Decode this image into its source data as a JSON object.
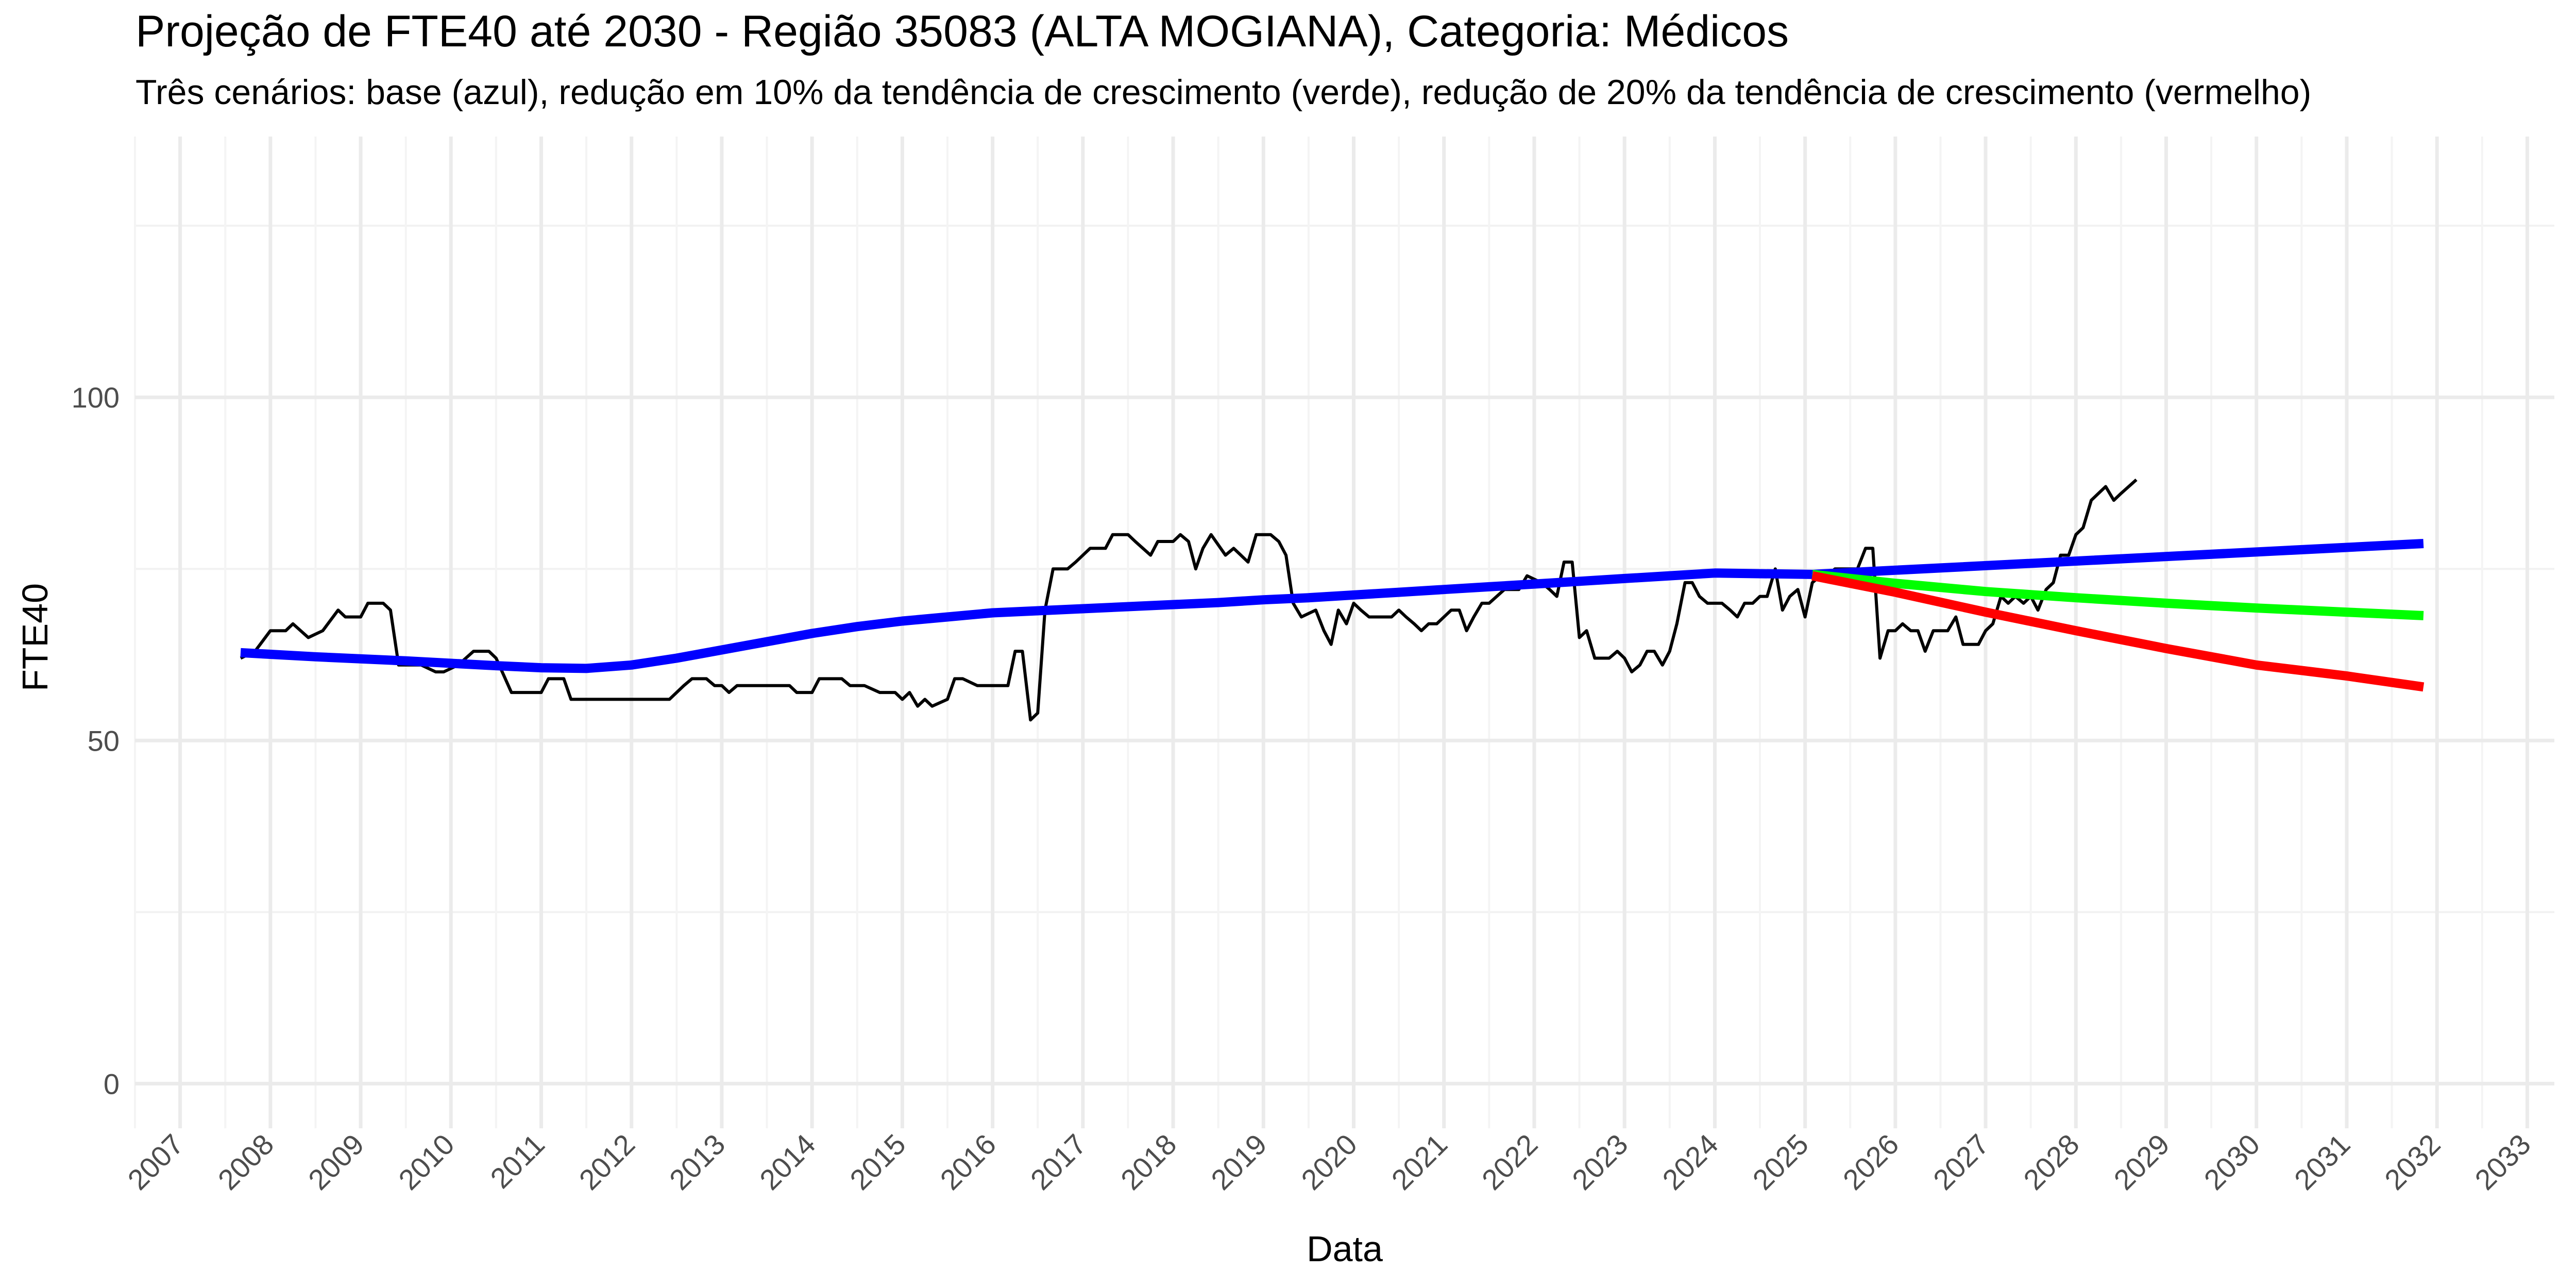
{
  "chart_data": {
    "type": "line",
    "title": "Projeção de FTE40 até 2030 - Região 35083 (ALTA MOGIANA), Categoria: Médicos",
    "subtitle": "Três cenários: base (azul), redução em 10% da tendência de crescimento (verde), redução de 20% da tendência de crescimento (vermelho)",
    "xlabel": "Data",
    "ylabel": "FTE40",
    "x_range": [
      2006.5,
      2033.3
    ],
    "ylim": [
      -6.5,
      138
    ],
    "y_ticks": [
      0,
      50,
      100
    ],
    "x_ticks": [
      "2007",
      "2008",
      "2009",
      "2010",
      "2011",
      "2012",
      "2013",
      "2014",
      "2015",
      "2016",
      "2017",
      "2018",
      "2019",
      "2020",
      "2021",
      "2022",
      "2023",
      "2024",
      "2025",
      "2026",
      "2027",
      "2028",
      "2029",
      "2030",
      "2031",
      "2032",
      "2033"
    ],
    "grid": true,
    "legend": "none",
    "series": [
      {
        "color": "#000000",
        "width": 6,
        "points": [
          [
            2007.67,
            62
          ],
          [
            2007.83,
            63
          ],
          [
            2008.0,
            66
          ],
          [
            2008.17,
            66
          ],
          [
            2008.25,
            67
          ],
          [
            2008.42,
            65
          ],
          [
            2008.58,
            66
          ],
          [
            2008.75,
            69
          ],
          [
            2008.83,
            68
          ],
          [
            2009.0,
            68
          ],
          [
            2009.08,
            70
          ],
          [
            2009.25,
            70
          ],
          [
            2009.33,
            69
          ],
          [
            2009.42,
            61
          ],
          [
            2009.67,
            61
          ],
          [
            2009.83,
            60
          ],
          [
            2009.92,
            60
          ],
          [
            2010.08,
            61
          ],
          [
            2010.25,
            63
          ],
          [
            2010.42,
            63
          ],
          [
            2010.5,
            62
          ],
          [
            2010.67,
            57
          ],
          [
            2011.0,
            57
          ],
          [
            2011.08,
            59
          ],
          [
            2011.25,
            59
          ],
          [
            2011.33,
            56
          ],
          [
            2012.42,
            56
          ],
          [
            2012.58,
            58
          ],
          [
            2012.67,
            59
          ],
          [
            2012.83,
            59
          ],
          [
            2012.92,
            58
          ],
          [
            2013.0,
            58
          ],
          [
            2013.08,
            57
          ],
          [
            2013.17,
            58
          ],
          [
            2013.75,
            58
          ],
          [
            2013.83,
            57
          ],
          [
            2014.0,
            57
          ],
          [
            2014.08,
            59
          ],
          [
            2014.33,
            59
          ],
          [
            2014.42,
            58
          ],
          [
            2014.58,
            58
          ],
          [
            2014.75,
            57
          ],
          [
            2014.92,
            57
          ],
          [
            2015.0,
            56
          ],
          [
            2015.08,
            57
          ],
          [
            2015.17,
            55
          ],
          [
            2015.25,
            56
          ],
          [
            2015.33,
            55
          ],
          [
            2015.5,
            56
          ],
          [
            2015.58,
            59
          ],
          [
            2015.67,
            59
          ],
          [
            2015.83,
            58
          ],
          [
            2016.17,
            58
          ],
          [
            2016.25,
            63
          ],
          [
            2016.33,
            63
          ],
          [
            2016.42,
            53
          ],
          [
            2016.5,
            54
          ],
          [
            2016.58,
            69
          ],
          [
            2016.67,
            75
          ],
          [
            2016.83,
            75
          ],
          [
            2016.92,
            76
          ],
          [
            2017.08,
            78
          ],
          [
            2017.25,
            78
          ],
          [
            2017.33,
            80
          ],
          [
            2017.5,
            80
          ],
          [
            2017.58,
            79
          ],
          [
            2017.75,
            77
          ],
          [
            2017.83,
            79
          ],
          [
            2018.0,
            79
          ],
          [
            2018.08,
            80
          ],
          [
            2018.17,
            79
          ],
          [
            2018.25,
            75
          ],
          [
            2018.33,
            78
          ],
          [
            2018.42,
            80
          ],
          [
            2018.58,
            77
          ],
          [
            2018.67,
            78
          ],
          [
            2018.75,
            77
          ],
          [
            2018.83,
            76
          ],
          [
            2018.92,
            80
          ],
          [
            2019.08,
            80
          ],
          [
            2019.17,
            79
          ],
          [
            2019.25,
            77
          ],
          [
            2019.33,
            70
          ],
          [
            2019.42,
            68
          ],
          [
            2019.58,
            69
          ],
          [
            2019.67,
            66
          ],
          [
            2019.75,
            64
          ],
          [
            2019.83,
            69
          ],
          [
            2019.92,
            67
          ],
          [
            2020.0,
            70
          ],
          [
            2020.08,
            69
          ],
          [
            2020.17,
            68
          ],
          [
            2020.42,
            68
          ],
          [
            2020.5,
            69
          ],
          [
            2020.58,
            68
          ],
          [
            2020.67,
            67
          ],
          [
            2020.75,
            66
          ],
          [
            2020.83,
            67
          ],
          [
            2020.92,
            67
          ],
          [
            2021.0,
            68
          ],
          [
            2021.08,
            69
          ],
          [
            2021.17,
            69
          ],
          [
            2021.25,
            66
          ],
          [
            2021.33,
            68
          ],
          [
            2021.42,
            70
          ],
          [
            2021.5,
            70
          ],
          [
            2021.67,
            72
          ],
          [
            2021.83,
            72
          ],
          [
            2021.92,
            74
          ],
          [
            2022.08,
            73
          ],
          [
            2022.17,
            72
          ],
          [
            2022.25,
            71
          ],
          [
            2022.33,
            76
          ],
          [
            2022.42,
            76
          ],
          [
            2022.5,
            65
          ],
          [
            2022.58,
            66
          ],
          [
            2022.67,
            62
          ],
          [
            2022.83,
            62
          ],
          [
            2022.92,
            63
          ],
          [
            2023.0,
            62
          ],
          [
            2023.08,
            60
          ],
          [
            2023.17,
            61
          ],
          [
            2023.25,
            63
          ],
          [
            2023.33,
            63
          ],
          [
            2023.42,
            61
          ],
          [
            2023.5,
            63
          ],
          [
            2023.58,
            67
          ],
          [
            2023.67,
            73
          ],
          [
            2023.75,
            73
          ],
          [
            2023.83,
            71
          ],
          [
            2023.92,
            70
          ],
          [
            2024.08,
            70
          ],
          [
            2024.17,
            69
          ],
          [
            2024.25,
            68
          ],
          [
            2024.33,
            70
          ],
          [
            2024.42,
            70
          ],
          [
            2024.5,
            71
          ],
          [
            2024.58,
            71
          ],
          [
            2024.67,
            75
          ],
          [
            2024.75,
            69
          ],
          [
            2024.83,
            71
          ],
          [
            2024.92,
            72
          ],
          [
            2025.0,
            68
          ],
          [
            2025.08,
            73
          ],
          [
            2025.17,
            74
          ],
          [
            2025.25,
            74
          ],
          [
            2025.33,
            75
          ],
          [
            2025.42,
            75
          ],
          [
            2025.58,
            75
          ],
          [
            2025.67,
            78
          ],
          [
            2025.75,
            78
          ],
          [
            2025.83,
            62
          ],
          [
            2025.92,
            66
          ],
          [
            2026.0,
            66
          ],
          [
            2026.08,
            67
          ],
          [
            2026.17,
            66
          ],
          [
            2026.25,
            66
          ],
          [
            2026.33,
            63
          ],
          [
            2026.42,
            66
          ],
          [
            2026.58,
            66
          ],
          [
            2026.67,
            68
          ],
          [
            2026.75,
            64
          ],
          [
            2026.92,
            64
          ],
          [
            2027.0,
            66
          ],
          [
            2027.08,
            67
          ],
          [
            2027.17,
            71
          ],
          [
            2027.25,
            70
          ],
          [
            2027.33,
            71
          ],
          [
            2027.42,
            70
          ],
          [
            2027.5,
            71
          ],
          [
            2027.58,
            69
          ],
          [
            2027.67,
            72
          ],
          [
            2027.75,
            73
          ],
          [
            2027.83,
            77
          ],
          [
            2027.92,
            77
          ],
          [
            2028.0,
            80
          ],
          [
            2028.08,
            81
          ],
          [
            2028.17,
            85
          ],
          [
            2028.25,
            86
          ],
          [
            2028.33,
            87
          ],
          [
            2028.42,
            85
          ],
          [
            2028.5,
            86
          ],
          [
            2028.67,
            88
          ]
        ]
      },
      {
        "color": "#0000ff",
        "width": 18,
        "points": [
          [
            2007.67,
            62.8
          ],
          [
            2008.5,
            62.2
          ],
          [
            2009.5,
            61.6
          ],
          [
            2010.5,
            60.9
          ],
          [
            2011.0,
            60.6
          ],
          [
            2011.5,
            60.5
          ],
          [
            2012.0,
            61.0
          ],
          [
            2012.5,
            62.0
          ],
          [
            2013.0,
            63.2
          ],
          [
            2013.5,
            64.4
          ],
          [
            2014.0,
            65.6
          ],
          [
            2014.5,
            66.6
          ],
          [
            2015.0,
            67.4
          ],
          [
            2015.5,
            68.0
          ],
          [
            2016.0,
            68.6
          ],
          [
            2016.5,
            68.9
          ],
          [
            2017.0,
            69.2
          ],
          [
            2017.5,
            69.5
          ],
          [
            2018.0,
            69.8
          ],
          [
            2018.5,
            70.1
          ],
          [
            2019.0,
            70.5
          ],
          [
            2019.5,
            70.8
          ],
          [
            2020.0,
            71.2
          ],
          [
            2020.5,
            71.6
          ],
          [
            2021.0,
            72.0
          ],
          [
            2021.5,
            72.4
          ],
          [
            2022.0,
            72.8
          ],
          [
            2022.5,
            73.2
          ],
          [
            2023.0,
            73.6
          ],
          [
            2023.5,
            74.0
          ],
          [
            2024.0,
            74.4
          ],
          [
            2025.08,
            74.2
          ],
          [
            2031.85,
            78.7
          ]
        ]
      },
      {
        "color": "#00ff00",
        "width": 18,
        "points": [
          [
            2025.08,
            74.2
          ],
          [
            2026.0,
            72.9
          ],
          [
            2027.0,
            71.7
          ],
          [
            2028.0,
            70.8
          ],
          [
            2029.0,
            70.0
          ],
          [
            2030.0,
            69.3
          ],
          [
            2031.0,
            68.7
          ],
          [
            2031.85,
            68.2
          ]
        ]
      },
      {
        "color": "#ff0000",
        "width": 18,
        "points": [
          [
            2025.08,
            74.0
          ],
          [
            2026.0,
            71.6
          ],
          [
            2027.0,
            68.7
          ],
          [
            2028.0,
            66.0
          ],
          [
            2029.0,
            63.4
          ],
          [
            2030.0,
            61.0
          ],
          [
            2031.0,
            59.4
          ],
          [
            2031.85,
            57.8
          ]
        ]
      }
    ]
  }
}
